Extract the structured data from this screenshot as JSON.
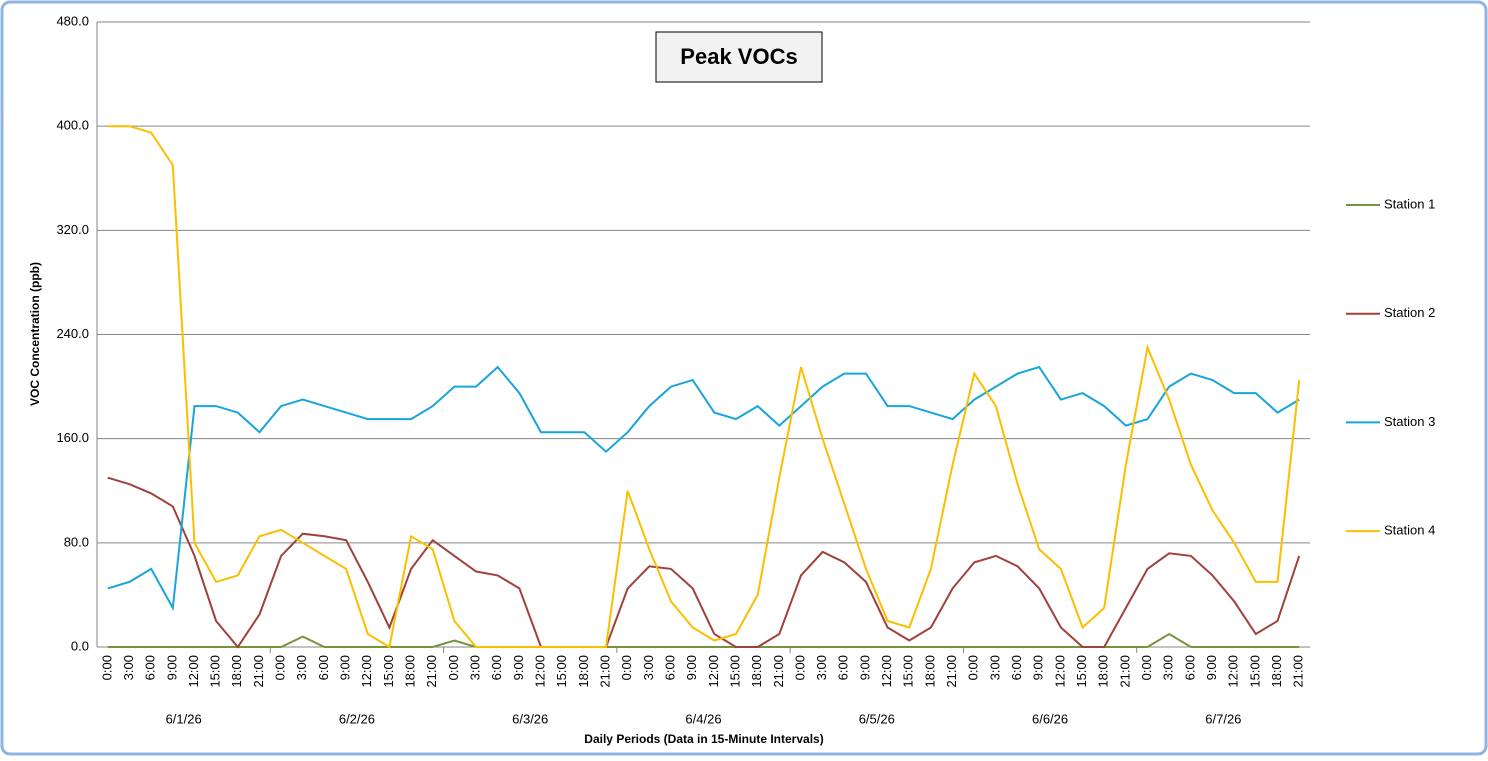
{
  "chart_data": {
    "type": "line",
    "title": "Peak VOCs",
    "y_label": "VOC Concentration (ppb)",
    "x_label": "Daily Periods (Data in 15-Minute Intervals)",
    "categories": [
      "0:00",
      "3:00",
      "6:00",
      "9:00",
      "12:00",
      "15:00",
      "18:00",
      "21:00",
      "0:00",
      "3:00",
      "6:00",
      "9:00",
      "12:00",
      "15:00",
      "18:00",
      "21:00",
      "0:00",
      "3:00",
      "6:00",
      "9:00",
      "12:00",
      "15:00",
      "18:00",
      "21:00",
      "0:00",
      "3:00",
      "6:00",
      "9:00",
      "12:00",
      "15:00",
      "18:00",
      "21:00",
      "0:00",
      "3:00",
      "6:00",
      "9:00",
      "12:00",
      "15:00",
      "18:00",
      "21:00",
      "0:00",
      "3:00",
      "6:00",
      "9:00",
      "12:00",
      "15:00",
      "18:00",
      "21:00",
      "0:00",
      "3:00",
      "6:00",
      "9:00",
      "12:00",
      "15:00",
      "18:00",
      "21:00"
    ],
    "x_groups": [
      "6/1/26",
      "6/2/26",
      "6/3/26",
      "6/4/26",
      "6/5/26",
      "6/6/26",
      "6/7/26"
    ],
    "ylim": [
      0,
      480
    ],
    "yticks": [
      {
        "value": 0,
        "label": "0.0"
      },
      {
        "value": 80,
        "label": "80.0"
      },
      {
        "value": 160,
        "label": "160.0"
      },
      {
        "value": 240,
        "label": "240.0"
      },
      {
        "value": 320,
        "label": "320.0"
      },
      {
        "value": 400,
        "label": "400.0"
      },
      {
        "value": 480,
        "label": "480.0"
      }
    ],
    "grid": true,
    "legend": "right",
    "series": [
      {
        "name": "Station 1",
        "color": "#77933c",
        "values": [
          0,
          0,
          0,
          0,
          0,
          0,
          0,
          0,
          0,
          8,
          0,
          0,
          0,
          0,
          0,
          0,
          5,
          0,
          0,
          0,
          0,
          0,
          0,
          0,
          0,
          0,
          0,
          0,
          0,
          0,
          0,
          0,
          0,
          0,
          0,
          0,
          0,
          0,
          0,
          0,
          0,
          0,
          0,
          0,
          0,
          0,
          0,
          0,
          0,
          10,
          0,
          0,
          0,
          0,
          0,
          0
        ]
      },
      {
        "name": "Station 2",
        "color": "#a0413b",
        "values": [
          130,
          125,
          118,
          108,
          70,
          20,
          0,
          25,
          70,
          87,
          85,
          82,
          50,
          15,
          60,
          82,
          70,
          58,
          55,
          45,
          0,
          0,
          0,
          0,
          45,
          62,
          60,
          45,
          10,
          0,
          0,
          10,
          55,
          73,
          65,
          50,
          15,
          5,
          15,
          45,
          65,
          70,
          62,
          45,
          15,
          0,
          0,
          30,
          60,
          72,
          70,
          55,
          35,
          10,
          20,
          70
        ]
      },
      {
        "name": "Station 3",
        "color": "#17a5dc",
        "values": [
          45,
          50,
          60,
          30,
          185,
          185,
          180,
          165,
          185,
          190,
          185,
          180,
          175,
          175,
          175,
          185,
          200,
          200,
          215,
          195,
          165,
          165,
          165,
          150,
          165,
          185,
          200,
          205,
          180,
          175,
          185,
          170,
          185,
          200,
          210,
          210,
          185,
          185,
          180,
          175,
          190,
          200,
          210,
          215,
          190,
          195,
          185,
          170,
          175,
          200,
          210,
          205,
          195,
          195,
          180,
          190
        ]
      },
      {
        "name": "Station 4",
        "color": "#fbbf00",
        "values": [
          400,
          400,
          395,
          370,
          80,
          50,
          55,
          85,
          90,
          80,
          70,
          60,
          10,
          0,
          85,
          75,
          20,
          0,
          0,
          0,
          0,
          0,
          0,
          0,
          120,
          75,
          35,
          15,
          5,
          10,
          40,
          130,
          215,
          160,
          110,
          60,
          20,
          15,
          60,
          140,
          210,
          185,
          125,
          75,
          60,
          15,
          30,
          140,
          230,
          190,
          140,
          105,
          80,
          50,
          50,
          205
        ]
      }
    ]
  }
}
